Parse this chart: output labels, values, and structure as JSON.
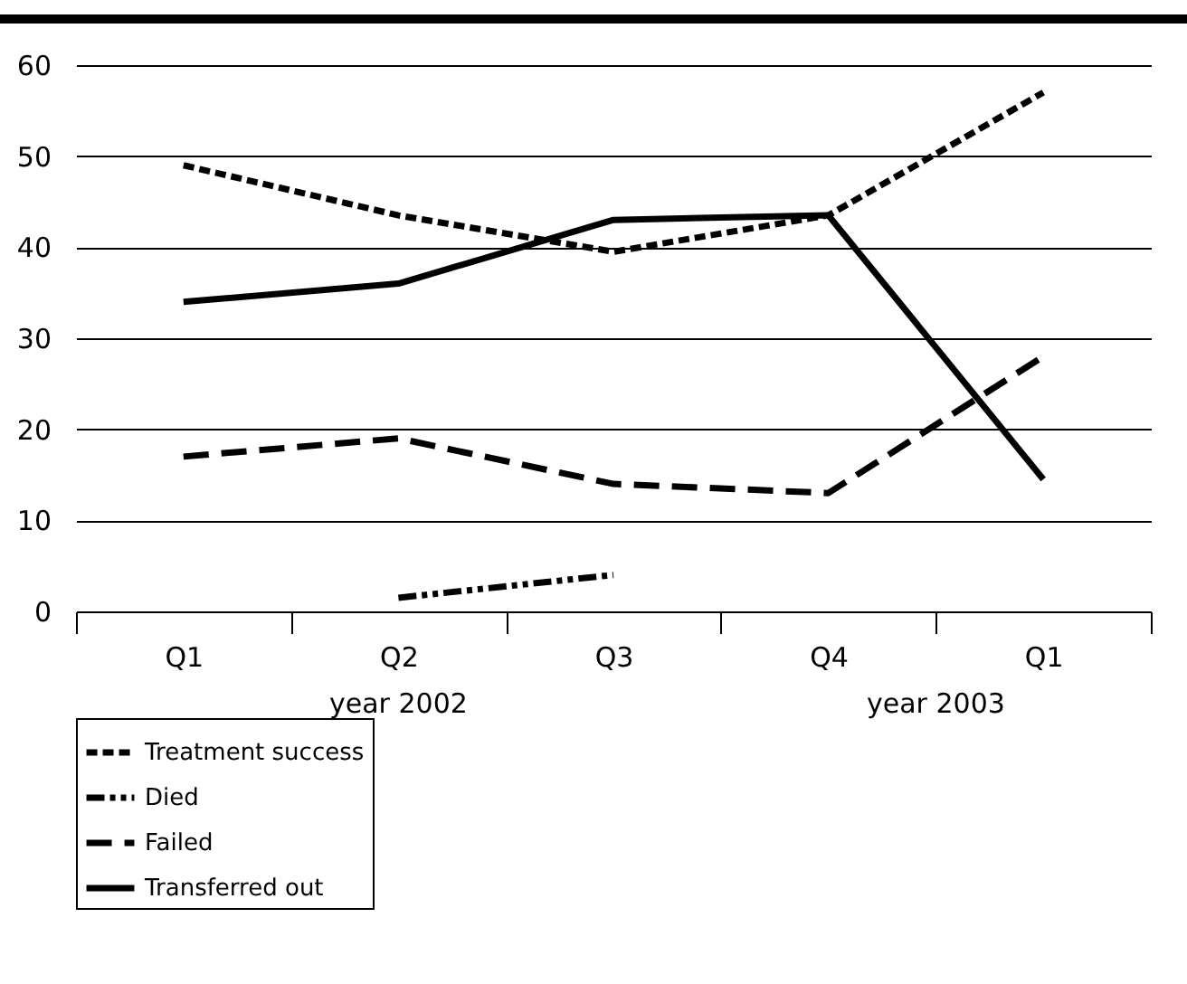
{
  "chart_data": {
    "type": "line",
    "categories": [
      "Q1",
      "Q2",
      "Q3",
      "Q4",
      "Q1"
    ],
    "series": [
      {
        "name": "Treatment success",
        "color": "#000000",
        "line_style": "dotted",
        "values": [
          49,
          43.5,
          39.5,
          43.5,
          57
        ]
      },
      {
        "name": "Died",
        "color": "#000000",
        "line_style": "dashdot",
        "values": [
          null,
          1.5,
          4,
          null,
          null
        ]
      },
      {
        "name": "Failed",
        "color": "#000000",
        "line_style": "dashed",
        "values": [
          17,
          19,
          14,
          13,
          28
        ]
      },
      {
        "name": "Transferred out",
        "color": "#000000",
        "line_style": "solid",
        "values": [
          34,
          36,
          43,
          43.5,
          14.5
        ]
      }
    ],
    "ylim": [
      0,
      60
    ],
    "yticks": [
      0,
      10,
      20,
      30,
      40,
      50,
      60
    ],
    "grid": "y",
    "legend": "bottom",
    "marker": "none",
    "annotations": [
      "year 2002",
      "year 2003"
    ]
  }
}
